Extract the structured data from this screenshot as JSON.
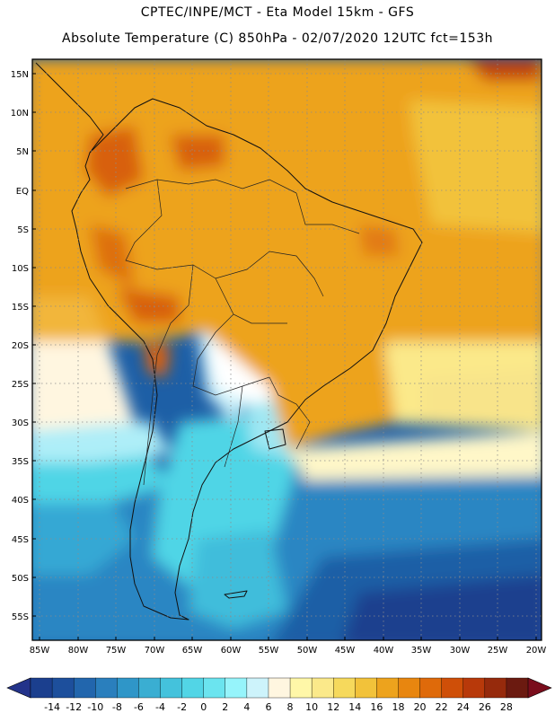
{
  "header": {
    "title_line1": "CPTEC/INPE/MCT -  Eta Model 15km - GFS",
    "title_line2": "Absolute Temperature (C) 850hPa - 02/07/2020 12UTC fct=153h"
  },
  "map": {
    "region": "South America",
    "lat_labels": [
      "15N",
      "10N",
      "5N",
      "EQ",
      "5S",
      "10S",
      "15S",
      "20S",
      "25S",
      "30S",
      "35S",
      "40S",
      "45S",
      "50S",
      "55S"
    ],
    "lon_labels": [
      "85W",
      "80W",
      "75W",
      "70W",
      "65W",
      "60W",
      "55W",
      "50W",
      "45W",
      "40W",
      "35W",
      "30W",
      "25W",
      "20W"
    ],
    "grid": "dotted",
    "colors": {
      "warm_core": "#d8610c",
      "orange": "#eda31d",
      "light_orange": "#f2c23a",
      "yellow": "#f8e48a",
      "cream": "#fff6e0",
      "light_cyan": "#cdf3fb",
      "cyan": "#4fd5e6",
      "blue": "#2a9ccd",
      "dark_blue": "#1d5fa6",
      "navy": "#1b3f8e"
    }
  },
  "legend": {
    "tick_labels": [
      "-14",
      "-12",
      "-10",
      "-8",
      "-6",
      "-4",
      "-2",
      "0",
      "2",
      "4",
      "6",
      "8",
      "10",
      "12",
      "14",
      "16",
      "18",
      "20",
      "22",
      "24",
      "26",
      "28"
    ],
    "swatches": [
      "#1b3f8e",
      "#1d4f9c",
      "#2266ad",
      "#2a7fbd",
      "#2f96c8",
      "#3aaed2",
      "#44c2dc",
      "#52d5e6",
      "#6be4ef",
      "#96f4fb",
      "#cdf3fb",
      "#fff6e0",
      "#fff7a8",
      "#fbe98a",
      "#f6d95c",
      "#f2c23a",
      "#eda31d",
      "#e8860f",
      "#df6a0a",
      "#cf4f08",
      "#b8390a",
      "#962a0c",
      "#6b1a10"
    ]
  }
}
